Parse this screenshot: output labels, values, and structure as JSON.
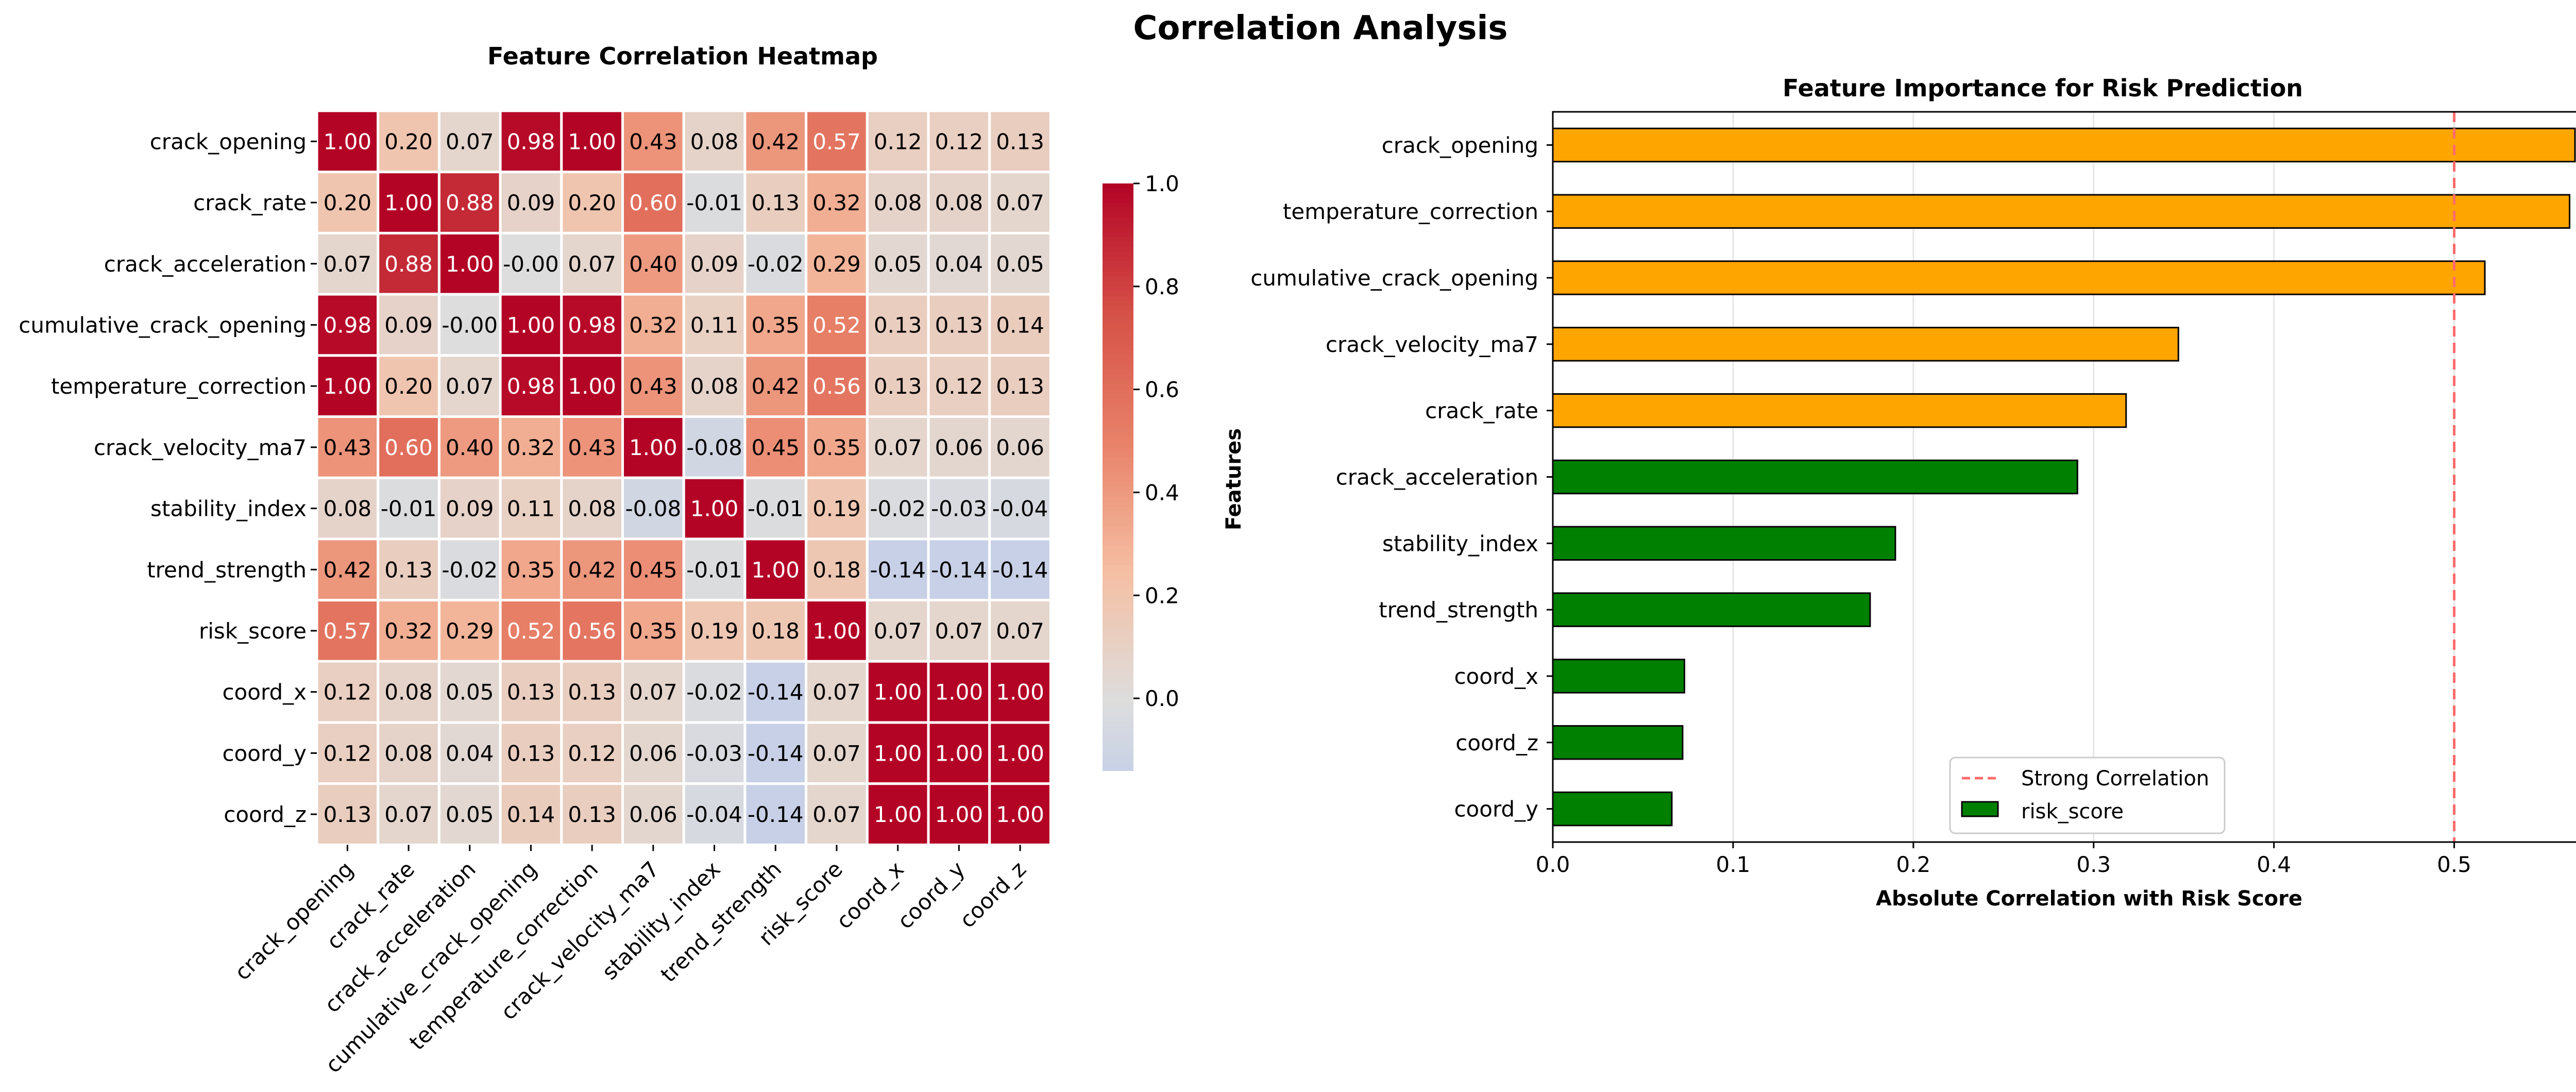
{
  "figure": {
    "title": "Correlation Analysis"
  },
  "chart_data": [
    {
      "type": "heatmap",
      "title": "Feature Correlation Heatmap",
      "rows": [
        "crack_opening",
        "crack_rate",
        "crack_acceleration",
        "cumulative_crack_opening",
        "temperature_correction",
        "crack_velocity_ma7",
        "stability_index",
        "trend_strength",
        "risk_score",
        "coord_x",
        "coord_y",
        "coord_z"
      ],
      "columns": [
        "crack_opening",
        "crack_rate",
        "crack_acceleration",
        "cumulative_crack_opening",
        "temperature_correction",
        "crack_velocity_ma7",
        "stability_index",
        "trend_strength",
        "risk_score",
        "coord_x",
        "coord_y",
        "coord_z"
      ],
      "values": [
        [
          1.0,
          0.2,
          0.07,
          0.98,
          1.0,
          0.43,
          0.08,
          0.42,
          0.57,
          0.12,
          0.12,
          0.13
        ],
        [
          0.2,
          1.0,
          0.88,
          0.09,
          0.2,
          0.6,
          -0.01,
          0.13,
          0.32,
          0.08,
          0.08,
          0.07
        ],
        [
          0.07,
          0.88,
          1.0,
          -0.0,
          0.07,
          0.4,
          0.09,
          -0.02,
          0.29,
          0.05,
          0.04,
          0.05
        ],
        [
          0.98,
          0.09,
          -0.0,
          1.0,
          0.98,
          0.32,
          0.11,
          0.35,
          0.52,
          0.13,
          0.13,
          0.14
        ],
        [
          1.0,
          0.2,
          0.07,
          0.98,
          1.0,
          0.43,
          0.08,
          0.42,
          0.56,
          0.13,
          0.12,
          0.13
        ],
        [
          0.43,
          0.6,
          0.4,
          0.32,
          0.43,
          1.0,
          -0.08,
          0.45,
          0.35,
          0.07,
          0.06,
          0.06
        ],
        [
          0.08,
          -0.01,
          0.09,
          0.11,
          0.08,
          -0.08,
          1.0,
          -0.01,
          0.19,
          -0.02,
          -0.03,
          -0.04
        ],
        [
          0.42,
          0.13,
          -0.02,
          0.35,
          0.42,
          0.45,
          -0.01,
          1.0,
          0.18,
          -0.14,
          -0.14,
          -0.14
        ],
        [
          0.57,
          0.32,
          0.29,
          0.52,
          0.56,
          0.35,
          0.19,
          0.18,
          1.0,
          0.07,
          0.07,
          0.07
        ],
        [
          0.12,
          0.08,
          0.05,
          0.13,
          0.13,
          0.07,
          -0.02,
          -0.14,
          0.07,
          1.0,
          1.0,
          1.0
        ],
        [
          0.12,
          0.08,
          0.04,
          0.13,
          0.12,
          0.06,
          -0.03,
          -0.14,
          0.07,
          1.0,
          1.0,
          1.0
        ],
        [
          0.13,
          0.07,
          0.05,
          0.14,
          0.13,
          0.06,
          -0.04,
          -0.14,
          0.07,
          1.0,
          1.0,
          1.0
        ]
      ],
      "colormap": "coolwarm (RdBu_r), centered at 0",
      "colorbar": {
        "range": [
          -0.14,
          1.0
        ],
        "ticks": [
          "0.0",
          "0.2",
          "0.4",
          "0.6",
          "0.8",
          "1.0"
        ]
      }
    },
    {
      "type": "bar",
      "orientation": "horizontal",
      "title": "Feature Importance for Risk Prediction",
      "xlabel": "Absolute Correlation with Risk Score",
      "ylabel": "Features",
      "categories": [
        "crack_opening",
        "temperature_correction",
        "cumulative_crack_opening",
        "crack_velocity_ma7",
        "crack_rate",
        "crack_acceleration",
        "stability_index",
        "trend_strength",
        "coord_x",
        "coord_z",
        "coord_y"
      ],
      "values": [
        0.567,
        0.564,
        0.517,
        0.347,
        0.318,
        0.291,
        0.19,
        0.176,
        0.073,
        0.072,
        0.066
      ],
      "series_name": "risk_score",
      "highlight_threshold": 0.3,
      "colors": {
        "above_threshold": "#FFA500",
        "below_threshold": "#008000",
        "reference_line": "#FF6B6B"
      },
      "xlim": [
        0,
        0.595
      ],
      "xticks": [
        "0.0",
        "0.1",
        "0.2",
        "0.3",
        "0.4",
        "0.5"
      ],
      "reference_line": {
        "x": 0.5,
        "label": "Strong Correlation"
      },
      "grid": "x-axis only",
      "legend": {
        "position": "lower-center",
        "entries": [
          "Strong Correlation",
          "risk_score"
        ]
      }
    }
  ]
}
